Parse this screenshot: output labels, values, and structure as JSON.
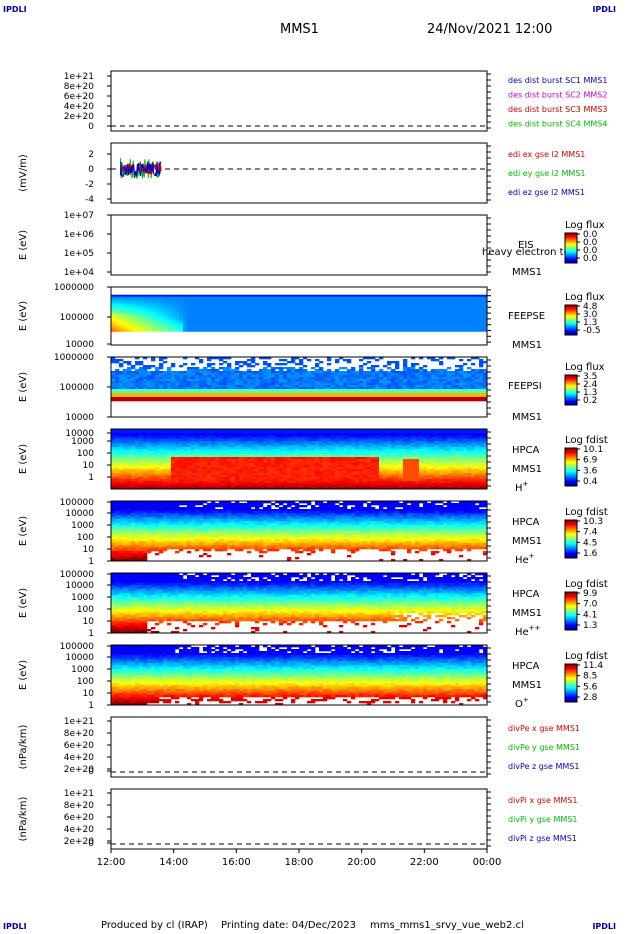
{
  "corner_label": "IPDLI",
  "header": {
    "spacecraft": "MMS1",
    "date_time": "24/Nov/2021 12:00"
  },
  "time_axis": {
    "ticks": [
      "12:00",
      "14:00",
      "16:00",
      "18:00",
      "20:00",
      "22:00",
      "00:00"
    ],
    "range_hours": [
      12,
      24
    ]
  },
  "panels": [
    {
      "id": "des-dist",
      "type": "line",
      "ytick_labels": [
        "1e+21",
        "8e+20",
        "6e+20",
        "4e+20",
        "2e+20",
        "0"
      ],
      "legend": [
        {
          "text": "des dist burst SC1 MMS1",
          "color": "#0000cc"
        },
        {
          "text": "des dist burst SC2 MMS2",
          "color": "#cc00cc"
        },
        {
          "text": "des dist burst SC3 MMS3",
          "color": "#cc0000"
        },
        {
          "text": "des dist burst SC4 MMS4",
          "color": "#00bb00"
        }
      ]
    },
    {
      "id": "edi-e",
      "type": "line",
      "ylabel": "(mV/m)",
      "ytick_labels": [
        "2",
        "0",
        "-2",
        "-4"
      ],
      "ylim": [
        -4,
        3
      ],
      "data_window_hours": [
        12.3,
        13.6
      ],
      "legend": [
        {
          "text": "edi ex gse l2 MMS1",
          "color": "#dd0000"
        },
        {
          "text": "edi ey gse l2 MMS1",
          "color": "#00bb00"
        },
        {
          "text": "edi ez gse l2 MMS1",
          "color": "#0000cc"
        }
      ]
    },
    {
      "id": "eis",
      "type": "heatmap",
      "ylabel": "E (eV)",
      "ytick_labels": [
        "1e+07",
        "1e+06",
        "1e+05",
        "1e+04"
      ],
      "labels": [
        "EIS",
        "MMS1"
      ],
      "overlay": "heavy electron to",
      "colorbar": {
        "title": "Log flux",
        "ticks": [
          "0.0",
          "0.0",
          "0.0",
          "0.0"
        ]
      }
    },
    {
      "id": "feepse",
      "type": "heatmap",
      "ylabel": "E (eV)",
      "ytick_labels": [
        "1000000",
        "100000",
        "10000"
      ],
      "labels": [
        "FEEPSE",
        "MMS1"
      ],
      "colorbar": {
        "title": "Log flux",
        "ticks": [
          "4.8",
          "3.0",
          "1.3",
          "-0.5"
        ]
      }
    },
    {
      "id": "feepsi",
      "type": "heatmap",
      "ylabel": "E (eV)",
      "ytick_labels": [
        "1000000",
        "100000",
        "10000"
      ],
      "labels": [
        "FEEPSI",
        "MMS1"
      ],
      "colorbar": {
        "title": "Log flux",
        "ticks": [
          "3.5",
          "2.4",
          "1.3",
          "0.2"
        ]
      }
    },
    {
      "id": "hpca-h",
      "type": "heatmap",
      "ylabel": "E (eV)",
      "ytick_labels": [
        "10000",
        "1000",
        "100",
        "10",
        "1"
      ],
      "labels": [
        "HPCA",
        "MMS1"
      ],
      "species": "H",
      "species_sup": "+",
      "colorbar": {
        "title": "Log fdist",
        "ticks": [
          "10.1",
          "6.9",
          "3.6",
          "0.4"
        ]
      }
    },
    {
      "id": "hpca-he",
      "type": "heatmap",
      "ylabel": "E (eV)",
      "ytick_labels": [
        "100000",
        "10000",
        "1000",
        "100",
        "10",
        "1"
      ],
      "labels": [
        "HPCA",
        "MMS1"
      ],
      "species": "He",
      "species_sup": "+",
      "colorbar": {
        "title": "Log fdist",
        "ticks": [
          "10.3",
          "7.4",
          "4.5",
          "1.6"
        ]
      }
    },
    {
      "id": "hpca-he2",
      "type": "heatmap",
      "ylabel": "E (eV)",
      "ytick_labels": [
        "100000",
        "10000",
        "1000",
        "100",
        "10",
        "1"
      ],
      "labels": [
        "HPCA",
        "MMS1"
      ],
      "species": "He",
      "species_sup": "++",
      "colorbar": {
        "title": "Log fdist",
        "ticks": [
          "9.9",
          "7.0",
          "4.1",
          "1.3"
        ]
      }
    },
    {
      "id": "hpca-o",
      "type": "heatmap",
      "ylabel": "E (eV)",
      "ytick_labels": [
        "100000",
        "10000",
        "1000",
        "100",
        "10",
        "1"
      ],
      "labels": [
        "HPCA",
        "MMS1"
      ],
      "species": "O",
      "species_sup": "+",
      "colorbar": {
        "title": "Log fdist",
        "ticks": [
          "11.4",
          "8.5",
          "5.6",
          "2.8"
        ]
      }
    },
    {
      "id": "divpe",
      "type": "line",
      "ylabel": "(nPa/km)",
      "ytick_labels": [
        "1e+21",
        "8e+20",
        "6e+20",
        "4e+20",
        "2e+20",
        "0"
      ],
      "legend": [
        {
          "text": "divPe x gse MMS1",
          "color": "#dd0000"
        },
        {
          "text": "divPe y gse MMS1",
          "color": "#00bb00"
        },
        {
          "text": "divPe z gse MMS1",
          "color": "#0000cc"
        }
      ]
    },
    {
      "id": "divpi",
      "type": "line",
      "ylabel": "(nPa/km)",
      "ytick_labels": [
        "1e+21",
        "8e+20",
        "6e+20",
        "4e+20",
        "2e+20",
        "0"
      ],
      "legend": [
        {
          "text": "divPi x gse MMS1",
          "color": "#dd0000"
        },
        {
          "text": "divPi y gse MMS1",
          "color": "#00bb00"
        },
        {
          "text": "divPi z gse MMS1",
          "color": "#0000cc"
        }
      ]
    }
  ],
  "footer": {
    "produced_by": "Produced by cl (IRAP)",
    "printing_date": "Printing date: 04/Dec/2023",
    "script": "mms_mms1_srvy_vue_web2.cl"
  }
}
